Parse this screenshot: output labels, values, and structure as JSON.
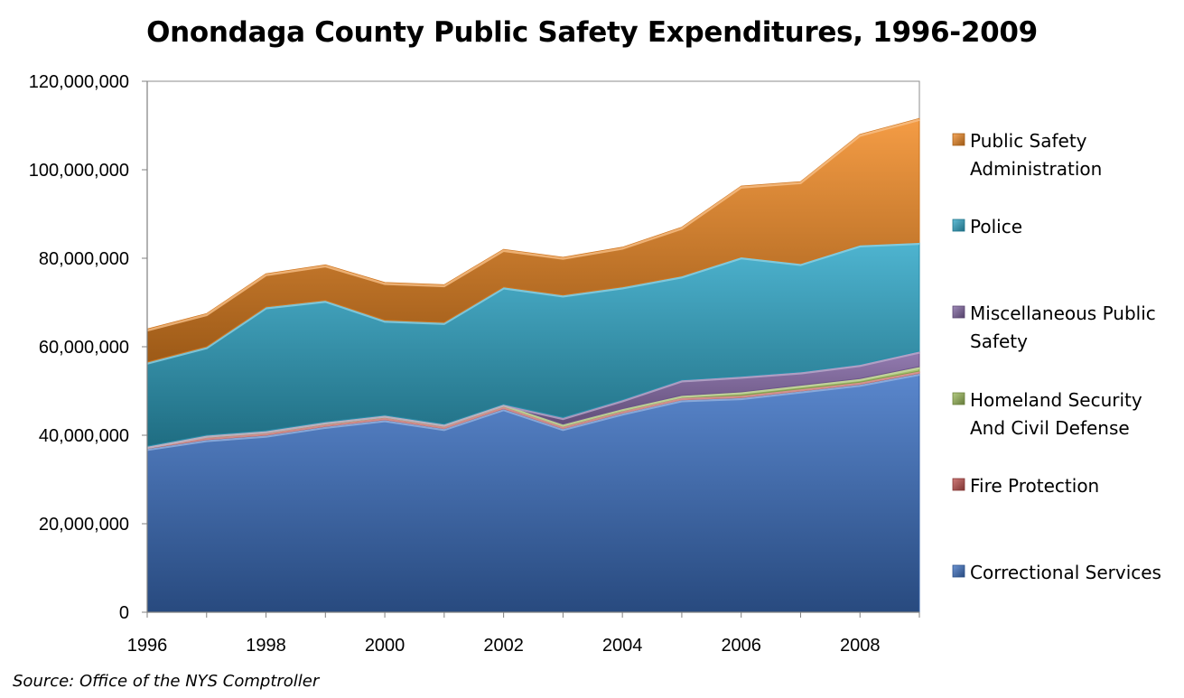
{
  "chart_data": {
    "type": "area",
    "stacked": true,
    "title": "Onondaga County Public Safety Expenditures, 1996-2009",
    "xlabel": "",
    "ylabel": "",
    "x": [
      1996,
      1997,
      1998,
      1999,
      2000,
      2001,
      2002,
      2003,
      2004,
      2005,
      2006,
      2007,
      2008,
      2009
    ],
    "x_tick_labels": [
      "1996",
      "1998",
      "2000",
      "2002",
      "2004",
      "2006",
      "2008"
    ],
    "x_ticks": [
      1996,
      1998,
      2000,
      2002,
      2004,
      2006,
      2008
    ],
    "ylim": [
      0,
      120000000
    ],
    "y_ticks": [
      0,
      20000000,
      40000000,
      60000000,
      80000000,
      100000000,
      120000000
    ],
    "y_tick_labels": [
      "0",
      "20,000,000",
      "40,000,000",
      "60,000,000",
      "80,000,000",
      "100,000,000",
      "120,000,000"
    ],
    "grid": false,
    "legend_position": "right",
    "series": [
      {
        "name": "Correctional Services",
        "color": "#3d72c4",
        "values": [
          37000000,
          39000000,
          40000000,
          42000000,
          43500000,
          41500000,
          46000000,
          41500000,
          45000000,
          48000000,
          48500000,
          50000000,
          51500000,
          54000000
        ]
      },
      {
        "name": "Fire Protection",
        "color": "#c0504d",
        "values": [
          500000,
          500000,
          500000,
          500000,
          500000,
          500000,
          500000,
          500000,
          500000,
          500000,
          500000,
          500000,
          500000,
          500000
        ]
      },
      {
        "name": "Homeland Security And Civil Defense",
        "color": "#9bbb59",
        "values": [
          0,
          500000,
          500000,
          500000,
          500000,
          500000,
          500000,
          500000,
          500000,
          500000,
          800000,
          800000,
          800000,
          1000000
        ]
      },
      {
        "name": "Miscellaneous Public Safety",
        "color": "#8064a2",
        "values": [
          0,
          0,
          0,
          0,
          0,
          0,
          0,
          1500000,
          2000000,
          3500000,
          3500000,
          3000000,
          3200000,
          3500000
        ]
      },
      {
        "name": "Police",
        "color": "#2fa7c8",
        "values": [
          19000000,
          20000000,
          28000000,
          27500000,
          21500000,
          23000000,
          26500000,
          27700000,
          25500000,
          23500000,
          27000000,
          24500000,
          27000000,
          24600000
        ]
      },
      {
        "name": "Public Safety Administration",
        "color": "#f28a24",
        "values": [
          7500000,
          7500000,
          7500000,
          8000000,
          8500000,
          8500000,
          8500000,
          8500000,
          9000000,
          11000000,
          16000000,
          18500000,
          25000000,
          28000000
        ]
      }
    ],
    "source": "Source:  Office of the NYS Comptroller"
  },
  "legend": {
    "entries": [
      {
        "lines": [
          "Public Safety",
          "Administration"
        ],
        "color": "#f28a24"
      },
      {
        "lines": [
          "Police"
        ],
        "color": "#2fa7c8"
      },
      {
        "lines": [
          "Miscellaneous Public",
          "Safety"
        ],
        "color": "#8064a2"
      },
      {
        "lines": [
          "Homeland Security",
          "And Civil Defense"
        ],
        "color": "#9bbb59"
      },
      {
        "lines": [
          "Fire Protection"
        ],
        "color": "#c0504d"
      },
      {
        "lines": [
          "Correctional Services"
        ],
        "color": "#3d72c4"
      }
    ]
  }
}
